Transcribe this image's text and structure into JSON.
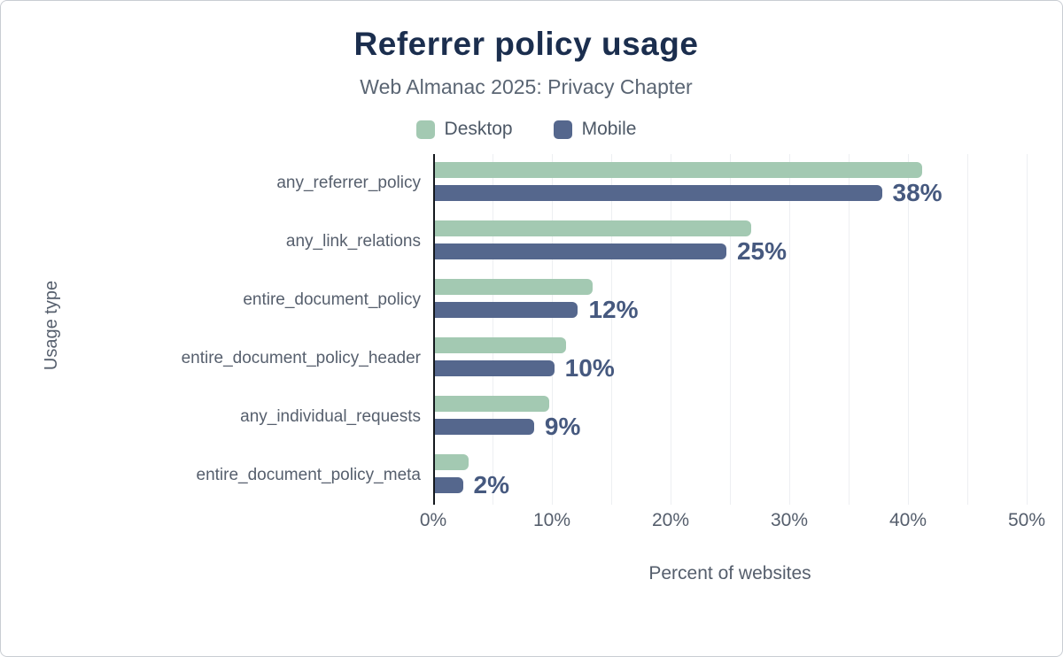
{
  "chart_data": {
    "type": "bar",
    "orientation": "horizontal",
    "title": "Referrer policy usage",
    "subtitle": "Web Almanac 2025: Privacy Chapter",
    "xlabel": "Percent of websites",
    "ylabel": "Usage type",
    "xlim": [
      0,
      50
    ],
    "x_ticks": [
      "0%",
      "10%",
      "20%",
      "30%",
      "40%",
      "50%"
    ],
    "grid": true,
    "gridline_step": 5,
    "legend_position": "top",
    "categories": [
      "any_referrer_policy",
      "any_link_relations",
      "entire_document_policy",
      "entire_document_policy_header",
      "any_individual_requests",
      "entire_document_policy_meta"
    ],
    "series": [
      {
        "name": "Desktop",
        "color": "#a3c9b2",
        "values": [
          41.2,
          26.8,
          13.4,
          11.2,
          9.8,
          3.0
        ]
      },
      {
        "name": "Mobile",
        "color": "#55678d",
        "values": [
          37.8,
          24.7,
          12.2,
          10.2,
          8.5,
          2.5
        ]
      }
    ],
    "bar_labels": [
      "38%",
      "25%",
      "12%",
      "10%",
      "9%",
      "2%"
    ]
  },
  "colors": {
    "title": "#1b2e4e",
    "subtitle": "#5a6573",
    "axis_text": "#555e6c",
    "value_label": "#46597f",
    "grid": "#edeff2",
    "axis_line": "#14181d",
    "desktop": "#a3c9b2",
    "mobile": "#55678d"
  }
}
